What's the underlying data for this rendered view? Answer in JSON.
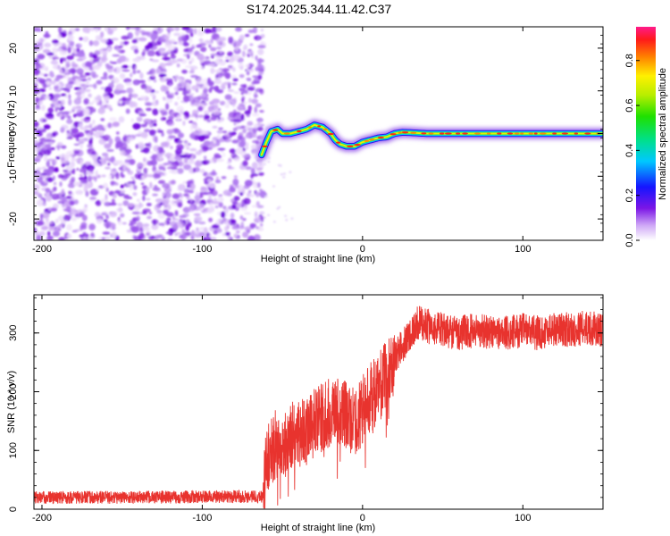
{
  "chart_data": [
    {
      "type": "heatmap",
      "title": "S174.2025.344.11.42.C37",
      "xlabel": "Height of straight line (km)",
      "ylabel": "Frequency (Hz)",
      "xlim": [
        -205,
        150
      ],
      "ylim": [
        -25,
        25
      ],
      "xticks": [
        -200,
        -100,
        0,
        100
      ],
      "yticks": [
        20,
        10,
        0,
        -10,
        -20
      ],
      "noise_region_x": [
        -205,
        -65
      ],
      "trace": {
        "x": [
          -63,
          -60,
          -57,
          -53,
          -50,
          -45,
          -40,
          -35,
          -30,
          -25,
          -20,
          -17,
          -14,
          -10,
          -5,
          0,
          5,
          10,
          15,
          20,
          25,
          30,
          40,
          60,
          80,
          100,
          120,
          150
        ],
        "freq": [
          -5,
          -2,
          0.5,
          1,
          0,
          0,
          0.5,
          1,
          2,
          1.5,
          0,
          -1.5,
          -2.5,
          -3,
          -3,
          -2,
          -1.5,
          -1,
          -0.8,
          0,
          0.3,
          0.2,
          0,
          0,
          0,
          0,
          0,
          0
        ]
      },
      "colorbar": {
        "label": "Normalized spectral amplitude",
        "ticks": [
          0.0,
          0.2,
          0.4,
          0.6,
          0.8
        ],
        "range": [
          0,
          0.95
        ]
      }
    },
    {
      "type": "line",
      "title": "",
      "xlabel": "Height of straight line (km)",
      "ylabel": "SNR (10 * v/v)",
      "xlim": [
        -205,
        150
      ],
      "ylim": [
        0,
        365
      ],
      "xticks": [
        -200,
        -100,
        0,
        100
      ],
      "yticks": [
        0,
        100,
        200,
        300
      ],
      "color": "#e8332e",
      "series": [
        {
          "name": "SNR",
          "x": [
            -205,
            -150,
            -100,
            -62,
            -60,
            -55,
            -50,
            -45,
            -40,
            -35,
            -30,
            -25,
            -20,
            -15,
            -10,
            -5,
            0,
            5,
            10,
            15,
            20,
            25,
            30,
            35,
            40,
            50,
            60,
            70,
            80,
            90,
            100,
            110,
            120,
            130,
            140,
            150
          ],
          "values": [
            20,
            20,
            21,
            22,
            80,
            110,
            100,
            125,
            130,
            135,
            145,
            155,
            165,
            170,
            160,
            145,
            170,
            190,
            205,
            230,
            255,
            280,
            300,
            318,
            312,
            305,
            300,
            305,
            302,
            300,
            305,
            300,
            308,
            305,
            310,
            302
          ]
        }
      ]
    }
  ]
}
